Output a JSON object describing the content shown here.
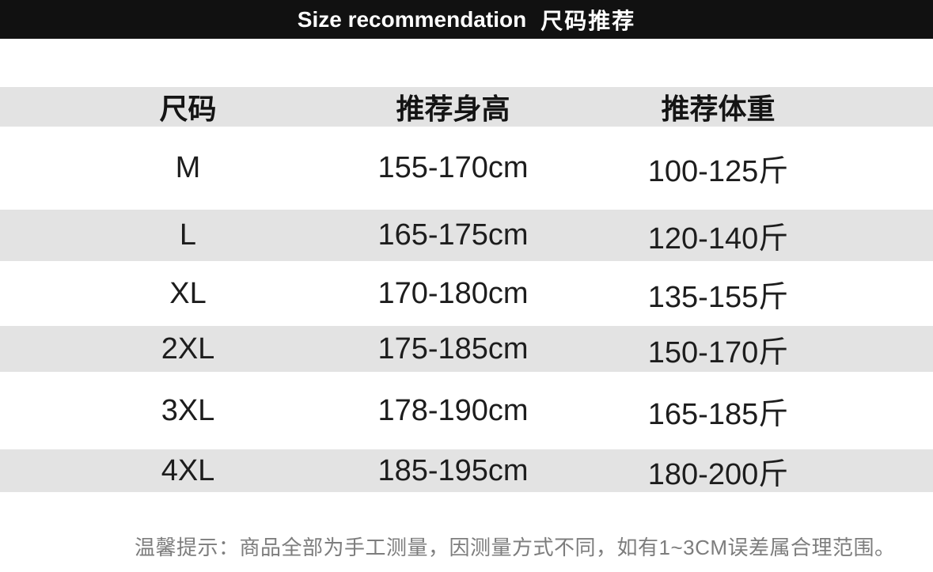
{
  "banner": {
    "title_en": "Size recommendation",
    "title_zh": "尺码推荐"
  },
  "table": {
    "columns": [
      "尺码",
      "推荐身高",
      "推荐体重"
    ],
    "rows": [
      {
        "size": "M",
        "height": "155-170cm",
        "weight": "100-125斤"
      },
      {
        "size": "L",
        "height": "165-175cm",
        "weight": "120-140斤"
      },
      {
        "size": "XL",
        "height": "170-180cm",
        "weight": "135-155斤"
      },
      {
        "size": "2XL",
        "height": "175-185cm",
        "weight": "150-170斤"
      },
      {
        "size": "3XL",
        "height": "178-190cm",
        "weight": "165-185斤"
      },
      {
        "size": "4XL",
        "height": "185-195cm",
        "weight": "180-200斤"
      }
    ]
  },
  "footer": {
    "note": "温馨提示：商品全部为手工测量，因测量方式不同，如有1~3CM误差属合理范围。"
  },
  "colors": {
    "banner_bg": "#111111",
    "banner_fg": "#ffffff",
    "stripe": "#e3e3e3",
    "text": "#1d1d1d",
    "note": "#7d7d7d",
    "page_bg": "#ffffff"
  }
}
